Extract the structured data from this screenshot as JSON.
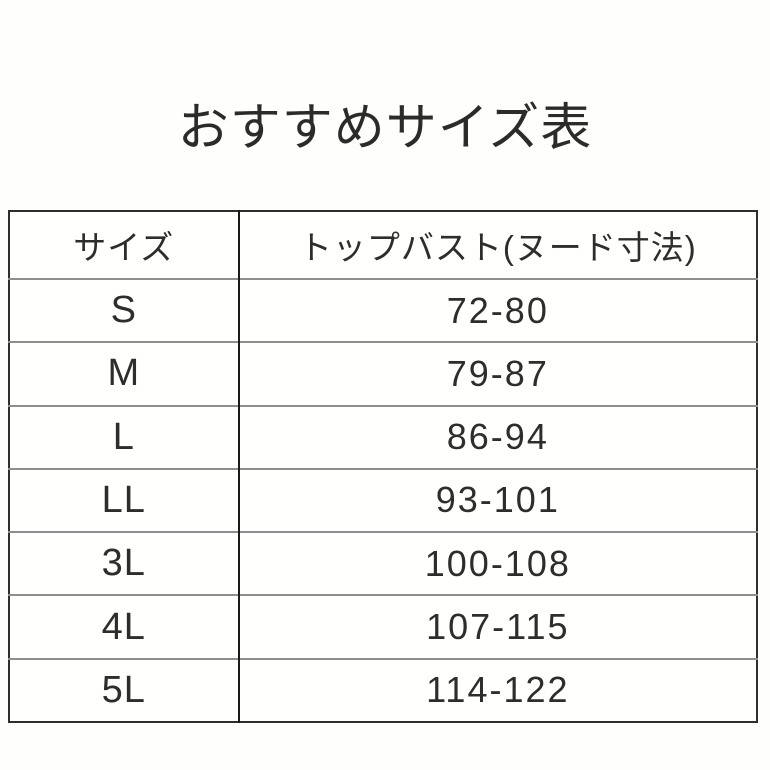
{
  "title": "おすすめサイズ表",
  "chart_data": {
    "type": "table",
    "title": "おすすめサイズ表",
    "columns": [
      "サイズ",
      "トップバスト(ヌード寸法)"
    ],
    "rows": [
      [
        "S",
        "72-80"
      ],
      [
        "M",
        "79-87"
      ],
      [
        "L",
        "86-94"
      ],
      [
        "LL",
        "93-101"
      ],
      [
        "3L",
        "100-108"
      ],
      [
        "4L",
        "107-115"
      ],
      [
        "5L",
        "114-122"
      ]
    ]
  },
  "colors": {
    "background": "#fefefd",
    "text": "#2d2d2b",
    "outer_border": "#2e2e2e",
    "column_divider": "#1a1a1a",
    "row_separator": "#8e8e8e"
  }
}
